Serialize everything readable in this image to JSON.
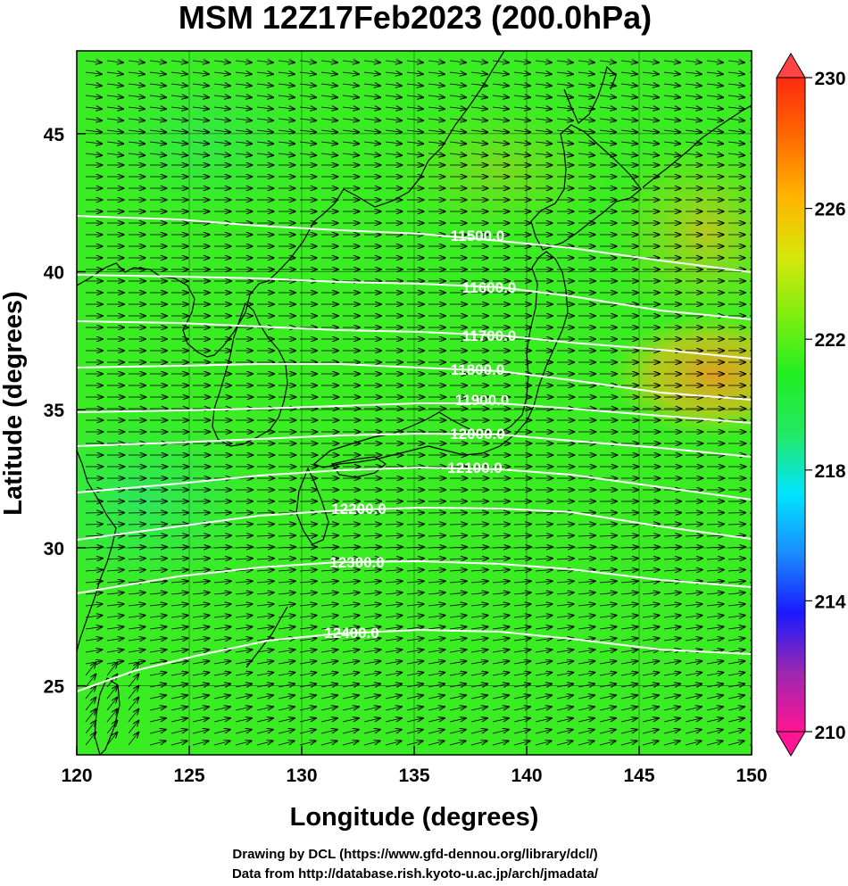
{
  "title": "MSM 12Z17Feb2023 (200.0hPa)",
  "xlabel": "Longitude (degrees)",
  "ylabel": "Latitude  (degrees)",
  "footer": {
    "line1": "Drawing by DCL (https://www.gfd-dennou.org/library/dcl/)",
    "line2": "Data from http://database.rish.kyoto-u.ac.jp/arch/jmadata/"
  },
  "colors": {
    "field_main": "#33ee22",
    "field_warm": "#e8b020",
    "field_cool": "#22e866",
    "contour": "#ffffff",
    "coast": "#000000",
    "vector": "#000000"
  },
  "map": {
    "lon_range": [
      120,
      150
    ],
    "lat_range": [
      22.5,
      48
    ],
    "x_ticks": [
      "120",
      "125",
      "130",
      "135",
      "140",
      "145",
      "150"
    ],
    "y_ticks": [
      "25",
      "30",
      "35",
      "40",
      "45"
    ],
    "grid": true
  },
  "colorbar": {
    "range": [
      210,
      230
    ],
    "labels": [
      "230",
      "226",
      "222",
      "218",
      "214",
      "210"
    ],
    "stops": [
      "#ff1493",
      "#9c27b0",
      "#1a1aff",
      "#1a8cff",
      "#00e5ff",
      "#22e866",
      "#22ee22",
      "#7fee10",
      "#d8e60a",
      "#ffb400",
      "#ff6a00",
      "#ff2a10"
    ]
  },
  "contours": [
    {
      "label": "11500.0"
    },
    {
      "label": "11600.0"
    },
    {
      "label": "11700.0"
    },
    {
      "label": "11800.0"
    },
    {
      "label": "11900.0"
    },
    {
      "label": "12000.0"
    },
    {
      "label": "12100.0"
    },
    {
      "label": "12200.0"
    },
    {
      "label": "12300.0"
    },
    {
      "label": "12400.0"
    }
  ]
}
